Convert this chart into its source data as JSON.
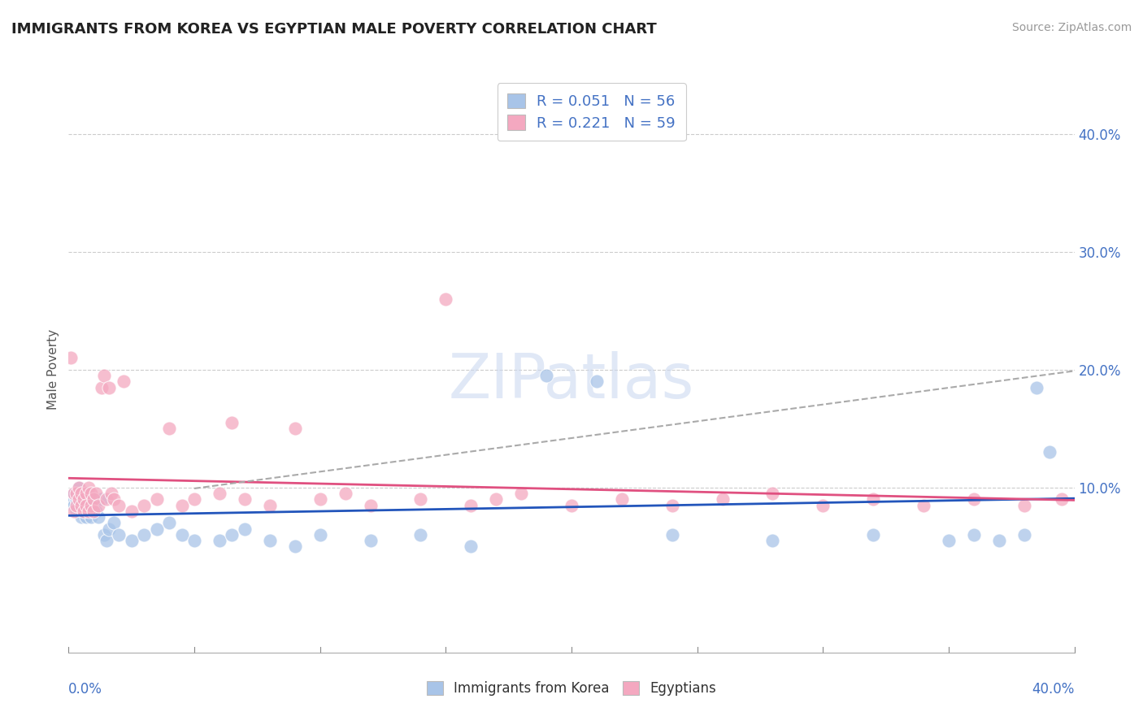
{
  "title": "IMMIGRANTS FROM KOREA VS EGYPTIAN MALE POVERTY CORRELATION CHART",
  "source": "Source: ZipAtlas.com",
  "ylabel": "Male Poverty",
  "xlim": [
    0.0,
    0.4
  ],
  "ylim": [
    -0.04,
    0.44
  ],
  "legend_r1": "R = 0.051   N = 56",
  "legend_r2": "R = 0.221   N = 59",
  "korea_color": "#a8c4e8",
  "egypt_color": "#f4a8c0",
  "korea_line_color": "#2255bb",
  "egypt_line_color": "#e05080",
  "watermark": "ZIPatlas",
  "korea_scatter_x": [
    0.001,
    0.002,
    0.002,
    0.003,
    0.003,
    0.004,
    0.004,
    0.004,
    0.005,
    0.005,
    0.005,
    0.006,
    0.006,
    0.007,
    0.007,
    0.007,
    0.008,
    0.008,
    0.009,
    0.009,
    0.01,
    0.01,
    0.011,
    0.012,
    0.013,
    0.014,
    0.015,
    0.016,
    0.018,
    0.02,
    0.025,
    0.03,
    0.035,
    0.04,
    0.045,
    0.05,
    0.06,
    0.065,
    0.07,
    0.08,
    0.09,
    0.1,
    0.12,
    0.14,
    0.16,
    0.19,
    0.21,
    0.24,
    0.28,
    0.32,
    0.35,
    0.36,
    0.37,
    0.38,
    0.385,
    0.39
  ],
  "korea_scatter_y": [
    0.09,
    0.085,
    0.095,
    0.08,
    0.09,
    0.095,
    0.085,
    0.1,
    0.075,
    0.09,
    0.095,
    0.08,
    0.085,
    0.09,
    0.075,
    0.095,
    0.085,
    0.09,
    0.08,
    0.075,
    0.09,
    0.085,
    0.08,
    0.075,
    0.09,
    0.06,
    0.055,
    0.065,
    0.07,
    0.06,
    0.055,
    0.06,
    0.065,
    0.07,
    0.06,
    0.055,
    0.055,
    0.06,
    0.065,
    0.055,
    0.05,
    0.06,
    0.055,
    0.06,
    0.05,
    0.195,
    0.19,
    0.06,
    0.055,
    0.06,
    0.055,
    0.06,
    0.055,
    0.06,
    0.185,
    0.13
  ],
  "egypt_scatter_x": [
    0.001,
    0.002,
    0.002,
    0.003,
    0.003,
    0.004,
    0.004,
    0.005,
    0.005,
    0.006,
    0.006,
    0.007,
    0.007,
    0.008,
    0.008,
    0.009,
    0.009,
    0.01,
    0.01,
    0.011,
    0.012,
    0.013,
    0.014,
    0.015,
    0.016,
    0.017,
    0.018,
    0.02,
    0.022,
    0.025,
    0.03,
    0.035,
    0.04,
    0.045,
    0.05,
    0.06,
    0.065,
    0.07,
    0.08,
    0.09,
    0.1,
    0.11,
    0.12,
    0.14,
    0.15,
    0.16,
    0.17,
    0.18,
    0.2,
    0.22,
    0.24,
    0.26,
    0.28,
    0.3,
    0.32,
    0.34,
    0.36,
    0.38,
    0.395
  ],
  "egypt_scatter_y": [
    0.21,
    0.08,
    0.095,
    0.085,
    0.095,
    0.09,
    0.1,
    0.085,
    0.095,
    0.08,
    0.09,
    0.095,
    0.085,
    0.1,
    0.08,
    0.095,
    0.085,
    0.09,
    0.08,
    0.095,
    0.085,
    0.185,
    0.195,
    0.09,
    0.185,
    0.095,
    0.09,
    0.085,
    0.19,
    0.08,
    0.085,
    0.09,
    0.15,
    0.085,
    0.09,
    0.095,
    0.155,
    0.09,
    0.085,
    0.15,
    0.09,
    0.095,
    0.085,
    0.09,
    0.26,
    0.085,
    0.09,
    0.095,
    0.085,
    0.09,
    0.085,
    0.09,
    0.095,
    0.085,
    0.09,
    0.085,
    0.09,
    0.085,
    0.09
  ]
}
